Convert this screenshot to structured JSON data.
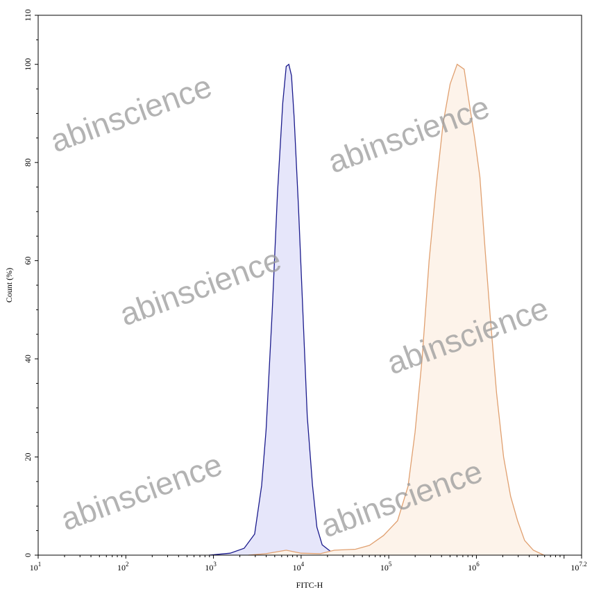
{
  "chart_data": {
    "type": "area",
    "title": "",
    "xlabel": "FITC-H",
    "ylabel": "Count (%)",
    "x_scale": "log10",
    "xlim_log10": [
      1,
      7.2
    ],
    "ylim": [
      0,
      110
    ],
    "x_tick_labels": [
      {
        "base": "10",
        "exp": "1",
        "log": 1
      },
      {
        "base": "10",
        "exp": "2",
        "log": 2
      },
      {
        "base": "10",
        "exp": "3",
        "log": 3
      },
      {
        "base": "10",
        "exp": "4",
        "log": 4
      },
      {
        "base": "10",
        "exp": "5",
        "log": 5
      },
      {
        "base": "10",
        "exp": "6",
        "log": 6
      },
      {
        "base": "10",
        "exp": "7.2",
        "log": 7.2
      }
    ],
    "y_ticks": [
      0,
      20,
      40,
      60,
      80,
      100,
      110
    ],
    "grid": false,
    "series": [
      {
        "color": "#1a1a8c",
        "fill": "#e6e6fa",
        "log10_x": [
          2.95,
          3.19,
          3.35,
          3.47,
          3.55,
          3.6,
          3.67,
          3.73,
          3.79,
          3.83,
          3.86,
          3.89,
          3.92,
          3.97,
          4.02,
          4.07,
          4.13,
          4.18,
          4.24,
          4.34,
          4.54,
          4.78
        ],
        "y": [
          0,
          0.4,
          1.4,
          4.3,
          14.2,
          25.5,
          49.6,
          73.7,
          92.1,
          99.6,
          100,
          97.7,
          89.2,
          70.8,
          49.6,
          28.3,
          14.2,
          5.7,
          2.1,
          0.7,
          0.3,
          0
        ]
      },
      {
        "color": "#e0a070",
        "fill": "#fdf3ea",
        "log10_x": [
          3.4,
          3.6,
          3.83,
          4.0,
          4.22,
          4.38,
          4.62,
          4.78,
          4.94,
          5.1,
          5.22,
          5.3,
          5.38,
          5.46,
          5.54,
          5.62,
          5.7,
          5.78,
          5.86,
          5.91,
          5.98,
          6.04,
          6.1,
          6.16,
          6.23,
          6.31,
          6.39,
          6.47,
          6.55,
          6.65,
          6.77
        ],
        "y": [
          0,
          0.3,
          1.0,
          0.4,
          0.3,
          1.0,
          1.2,
          2.0,
          4.0,
          7.0,
          14.0,
          25.0,
          40.0,
          60.0,
          75.0,
          88.0,
          96.0,
          100,
          99.0,
          93.0,
          85.0,
          77.0,
          62.0,
          48.0,
          33.0,
          20.0,
          12.0,
          7.0,
          3.0,
          1.0,
          0
        ]
      }
    ]
  },
  "watermark": "abinscience"
}
